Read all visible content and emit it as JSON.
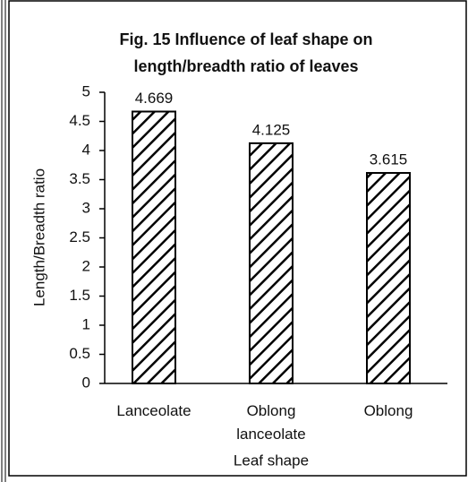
{
  "chart_data": {
    "type": "bar",
    "title": [
      "Fig. 15  Influence of leaf shape on",
      "length/breadth ratio of leaves"
    ],
    "xlabel": "Leaf shape",
    "ylabel": "Length/Breadth ratio",
    "categories": [
      "Lanceolate",
      "Oblong lanceolate",
      "Oblong"
    ],
    "values": [
      4.669,
      4.125,
      3.615
    ],
    "color": "#000000",
    "ylim": [
      0,
      5
    ],
    "yticks": [
      0,
      0.5,
      1,
      1.5,
      2,
      2.5,
      3,
      3.5,
      4,
      4.5,
      5
    ],
    "grid": false
  }
}
